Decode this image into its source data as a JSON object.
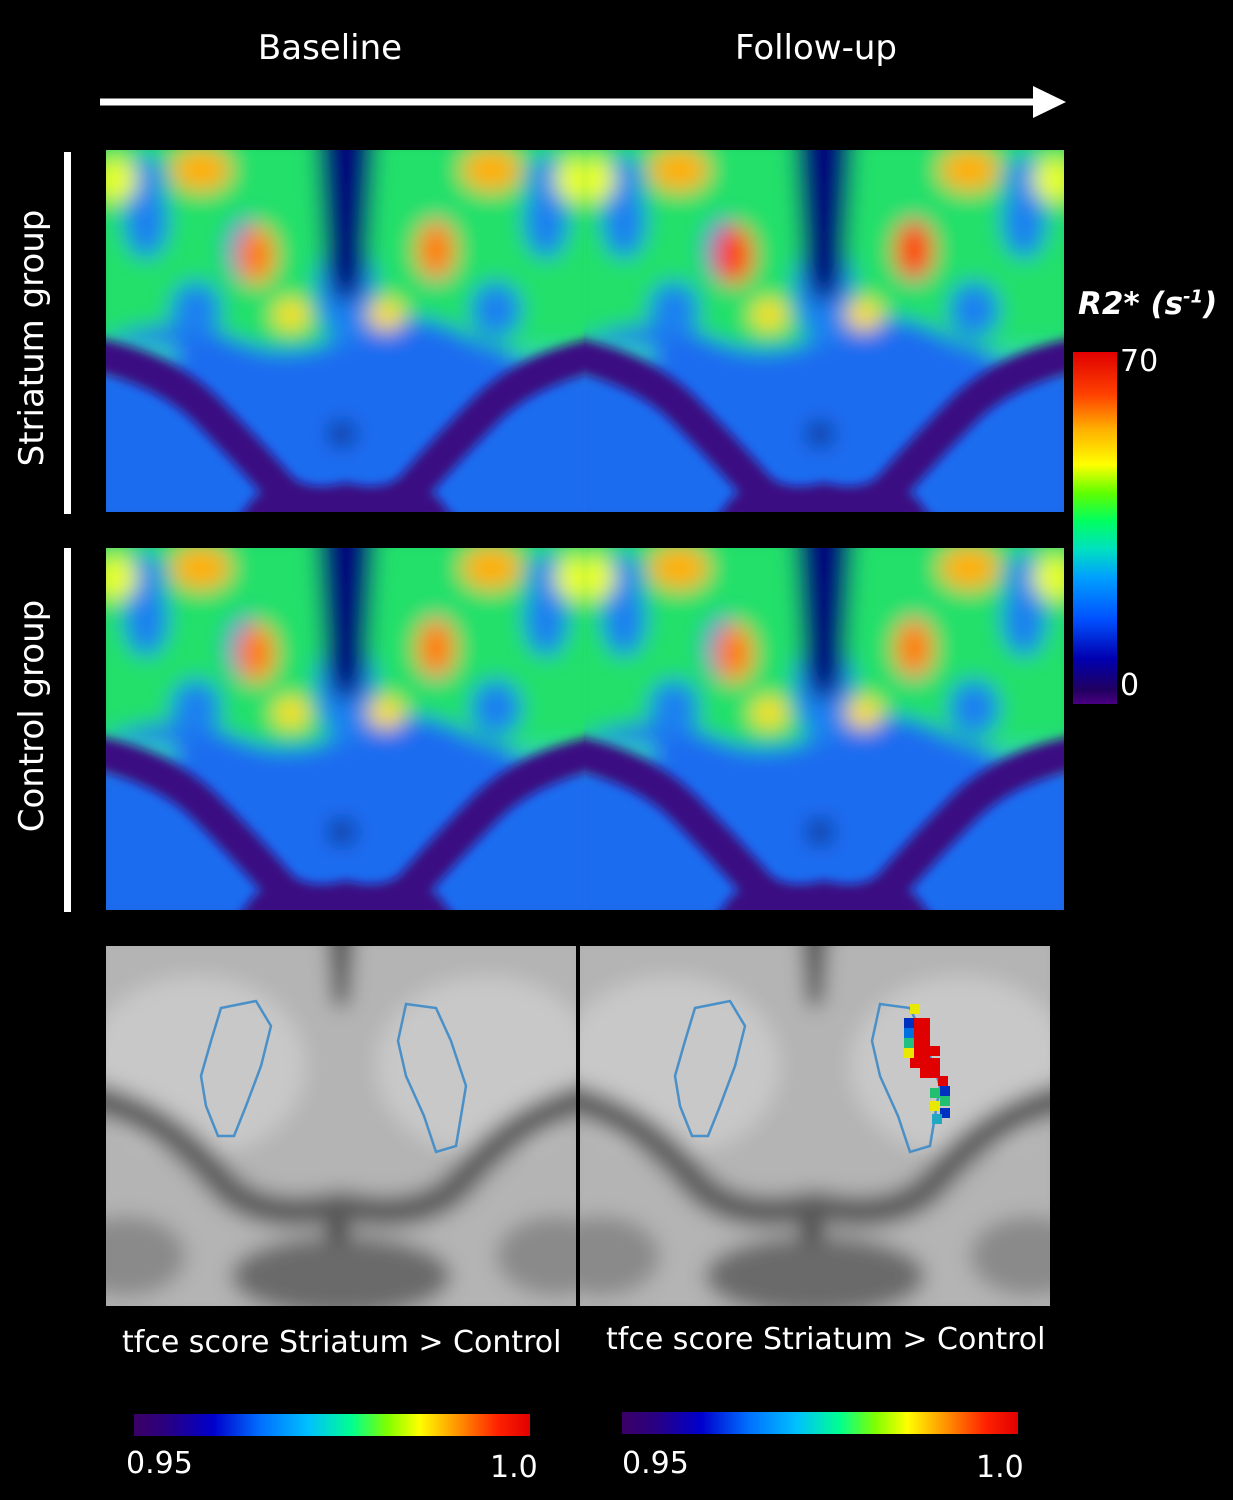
{
  "columns": {
    "baseline": "Baseline",
    "followup": "Follow-up"
  },
  "rows": {
    "striatum": "Striatum group",
    "control": "Control group"
  },
  "r2_colorbar": {
    "title_main": "R2* (s",
    "title_sup": "-1",
    "title_end": ")",
    "max": "70",
    "min": "0"
  },
  "tfce": {
    "baseline": {
      "title": "tfce score Striatum > Control",
      "min": "0.95",
      "max": "1.0"
    },
    "followup": {
      "title": "tfce score Striatum > Control",
      "min": "0.95",
      "max": "1.0"
    }
  },
  "colors": {
    "background": "#000000",
    "outline": "#4a90c8",
    "brain_gray": "#a8a8a8"
  }
}
